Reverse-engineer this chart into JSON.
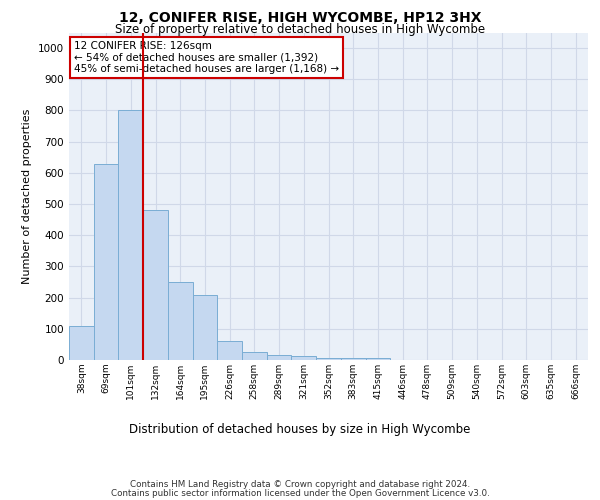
{
  "title": "12, CONIFER RISE, HIGH WYCOMBE, HP12 3HX",
  "subtitle": "Size of property relative to detached houses in High Wycombe",
  "xlabel": "Distribution of detached houses by size in High Wycombe",
  "ylabel": "Number of detached properties",
  "bar_labels": [
    "38sqm",
    "69sqm",
    "101sqm",
    "132sqm",
    "164sqm",
    "195sqm",
    "226sqm",
    "258sqm",
    "289sqm",
    "321sqm",
    "352sqm",
    "383sqm",
    "415sqm",
    "446sqm",
    "478sqm",
    "509sqm",
    "540sqm",
    "572sqm",
    "603sqm",
    "635sqm",
    "666sqm"
  ],
  "bar_values": [
    110,
    630,
    800,
    480,
    250,
    207,
    60,
    25,
    17,
    12,
    7,
    5,
    5,
    0,
    0,
    0,
    0,
    0,
    0,
    0,
    0
  ],
  "bar_color": "#c5d8f0",
  "bar_edge_color": "#7aadd4",
  "vline_color": "#cc0000",
  "annotation_text": "12 CONIFER RISE: 126sqm\n← 54% of detached houses are smaller (1,392)\n45% of semi-detached houses are larger (1,168) →",
  "annotation_box_color": "#ffffff",
  "annotation_box_edge": "#cc0000",
  "ylim": [
    0,
    1050
  ],
  "yticks": [
    0,
    100,
    200,
    300,
    400,
    500,
    600,
    700,
    800,
    900,
    1000
  ],
  "grid_color": "#d0d8e8",
  "bg_color": "#eaf0f8",
  "footer_line1": "Contains HM Land Registry data © Crown copyright and database right 2024.",
  "footer_line2": "Contains public sector information licensed under the Open Government Licence v3.0."
}
